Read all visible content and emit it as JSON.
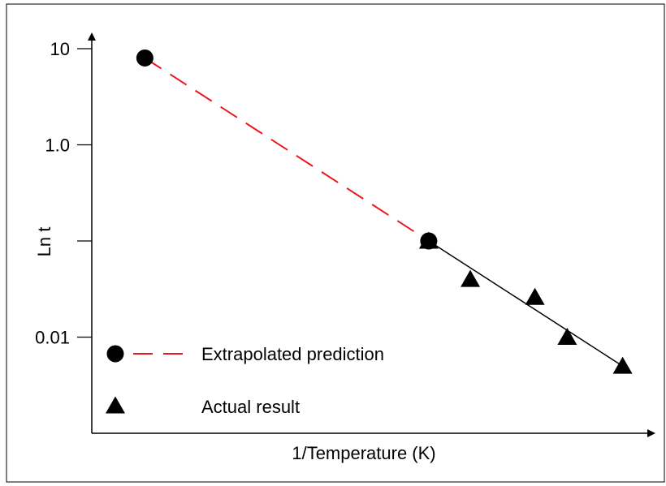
{
  "chart_data": {
    "type": "scatter",
    "title": "",
    "xlabel": "1/Temperature (K)",
    "ylabel": "Ln t",
    "y_scale": "log",
    "ylim": [
      0.0003,
      17
    ],
    "xlim": [
      0,
      12
    ],
    "y_ticks": [
      {
        "value": 10,
        "label": "10"
      },
      {
        "value": 1,
        "label": "1.0"
      },
      {
        "value": 0.1,
        "label": ""
      },
      {
        "value": 0.01,
        "label": "0.01"
      }
    ],
    "series": [
      {
        "name": "Extrapolated prediction",
        "marker": "circle",
        "line": "dashed",
        "color": "#e8181e",
        "points": [
          {
            "x": 1.15,
            "y": 8
          },
          {
            "x": 7.3,
            "y": 0.1
          }
        ]
      },
      {
        "name": "Actual result",
        "marker": "triangle",
        "line": "solid",
        "color": "#000000",
        "points": [
          {
            "x": 7.3,
            "y": 0.1
          },
          {
            "x": 8.2,
            "y": 0.04
          },
          {
            "x": 9.6,
            "y": 0.026
          },
          {
            "x": 10.3,
            "y": 0.01
          },
          {
            "x": 11.5,
            "y": 0.005
          }
        ]
      }
    ],
    "legend": {
      "placement": "bottom-left",
      "entries": [
        {
          "label": "Extrapolated prediction",
          "marker": "circle",
          "line": "dashed"
        },
        {
          "label": "Actual result",
          "marker": "triangle",
          "line": "none"
        }
      ]
    },
    "frame_border": true,
    "grid": false
  }
}
